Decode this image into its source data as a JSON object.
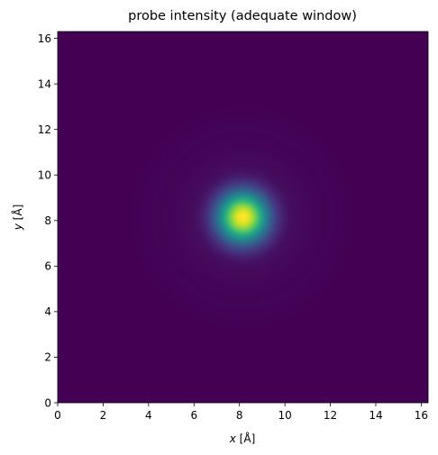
{
  "chart_data": {
    "type": "heatmap",
    "title": "probe intensity (adequate window)",
    "xlabel_var": "x",
    "xlabel_unit": " [Å]",
    "ylabel_var": "y",
    "ylabel_unit": " [Å]",
    "xlim": [
      0,
      16.3
    ],
    "ylim": [
      0,
      16.3
    ],
    "xticks": [
      "0",
      "2",
      "4",
      "6",
      "8",
      "10",
      "12",
      "14",
      "16"
    ],
    "yticks": [
      "0",
      "2",
      "4",
      "6",
      "8",
      "10",
      "12",
      "14",
      "16"
    ],
    "colormap": "viridis",
    "grid": false,
    "legend": "none",
    "probe": {
      "center_x": 8.15,
      "center_y": 8.15,
      "core_sigma": 0.8,
      "ring_radius": 2.6,
      "ring_width": 0.7,
      "ring_level": 0.018,
      "ring2_radius": 4.0,
      "ring2_level": 0.008
    }
  }
}
